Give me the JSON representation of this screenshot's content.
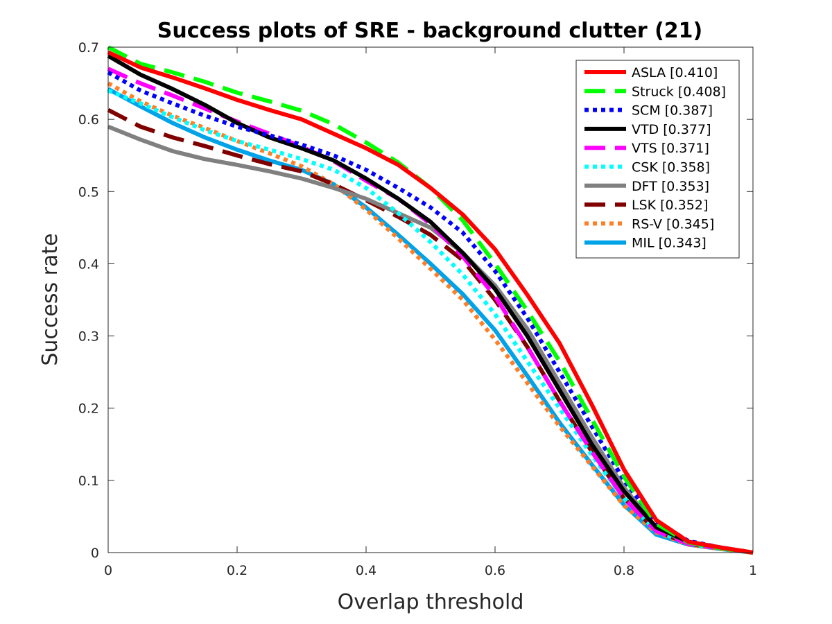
{
  "chart_data": {
    "type": "line",
    "title": "Success plots of SRE - background clutter (21)",
    "xlabel": "Overlap threshold",
    "ylabel": "Success rate",
    "xlim": [
      0,
      1
    ],
    "ylim": [
      0,
      0.7
    ],
    "xticks": [
      "0",
      "0.2",
      "0.4",
      "0.6",
      "0.8",
      "1"
    ],
    "yticks": [
      "0",
      "0.1",
      "0.2",
      "0.3",
      "0.4",
      "0.5",
      "0.6",
      "0.7"
    ],
    "grid": false,
    "legend_position": "top-right",
    "x": [
      0,
      0.05,
      0.1,
      0.15,
      0.2,
      0.25,
      0.3,
      0.35,
      0.4,
      0.45,
      0.5,
      0.55,
      0.6,
      0.65,
      0.7,
      0.75,
      0.8,
      0.85,
      0.9,
      0.95,
      1.0
    ],
    "series": [
      {
        "name": "ASLA [0.410]",
        "color": "#ff0000",
        "dash": "solid",
        "values": [
          0.693,
          0.672,
          0.658,
          0.643,
          0.627,
          0.613,
          0.6,
          0.58,
          0.56,
          0.537,
          0.505,
          0.468,
          0.42,
          0.357,
          0.29,
          0.205,
          0.115,
          0.045,
          0.015,
          0.007,
          0.0
        ]
      },
      {
        "name": "Struck [0.408]",
        "color": "#00ff00",
        "dash": "dash",
        "values": [
          0.7,
          0.677,
          0.665,
          0.652,
          0.637,
          0.625,
          0.612,
          0.593,
          0.568,
          0.54,
          0.505,
          0.46,
          0.4,
          0.335,
          0.265,
          0.185,
          0.105,
          0.04,
          0.014,
          0.006,
          0.0
        ]
      },
      {
        "name": "SCM [0.387]",
        "color": "#0000ff",
        "dash": "dot",
        "values": [
          0.665,
          0.64,
          0.622,
          0.605,
          0.59,
          0.578,
          0.565,
          0.55,
          0.53,
          0.505,
          0.478,
          0.443,
          0.39,
          0.325,
          0.25,
          0.175,
          0.1,
          0.043,
          0.016,
          0.007,
          0.0
        ]
      },
      {
        "name": "VTD [0.377]",
        "color": "#000000",
        "dash": "solid",
        "values": [
          0.688,
          0.662,
          0.642,
          0.62,
          0.595,
          0.575,
          0.56,
          0.543,
          0.518,
          0.49,
          0.458,
          0.415,
          0.365,
          0.3,
          0.225,
          0.15,
          0.085,
          0.035,
          0.015,
          0.007,
          0.0
        ]
      },
      {
        "name": "VTS [0.371]",
        "color": "#ff00ff",
        "dash": "dash",
        "values": [
          0.67,
          0.65,
          0.633,
          0.615,
          0.597,
          0.58,
          0.562,
          0.542,
          0.515,
          0.49,
          0.455,
          0.41,
          0.355,
          0.285,
          0.21,
          0.14,
          0.075,
          0.03,
          0.012,
          0.006,
          0.0
        ]
      },
      {
        "name": "CSK [0.358]",
        "color": "#00ffff",
        "dash": "dot",
        "values": [
          0.64,
          0.622,
          0.603,
          0.585,
          0.57,
          0.558,
          0.545,
          0.53,
          0.505,
          0.47,
          0.43,
          0.385,
          0.33,
          0.265,
          0.2,
          0.135,
          0.075,
          0.03,
          0.012,
          0.006,
          0.0
        ]
      },
      {
        "name": "DFT [0.353]",
        "color": "#808080",
        "dash": "solid",
        "values": [
          0.59,
          0.572,
          0.556,
          0.545,
          0.537,
          0.528,
          0.518,
          0.505,
          0.49,
          0.47,
          0.45,
          0.415,
          0.37,
          0.31,
          0.235,
          0.16,
          0.09,
          0.035,
          0.013,
          0.006,
          0.0
        ]
      },
      {
        "name": "LSK [0.352]",
        "color": "#800000",
        "dash": "dash",
        "values": [
          0.613,
          0.59,
          0.575,
          0.563,
          0.55,
          0.538,
          0.528,
          0.51,
          0.488,
          0.465,
          0.44,
          0.405,
          0.35,
          0.285,
          0.21,
          0.14,
          0.075,
          0.03,
          0.012,
          0.006,
          0.0
        ]
      },
      {
        "name": "RS-V [0.345]",
        "color": "#ff7f27",
        "dash": "dot",
        "values": [
          0.65,
          0.625,
          0.605,
          0.588,
          0.57,
          0.553,
          0.535,
          0.51,
          0.475,
          0.435,
          0.393,
          0.35,
          0.295,
          0.235,
          0.175,
          0.12,
          0.065,
          0.028,
          0.011,
          0.005,
          0.0
        ]
      },
      {
        "name": "MIL [0.343]",
        "color": "#00a2e8",
        "dash": "solid",
        "values": [
          0.642,
          0.618,
          0.595,
          0.575,
          0.558,
          0.543,
          0.53,
          0.51,
          0.478,
          0.44,
          0.4,
          0.358,
          0.308,
          0.245,
          0.18,
          0.122,
          0.066,
          0.025,
          0.011,
          0.005,
          0.0
        ]
      }
    ]
  }
}
